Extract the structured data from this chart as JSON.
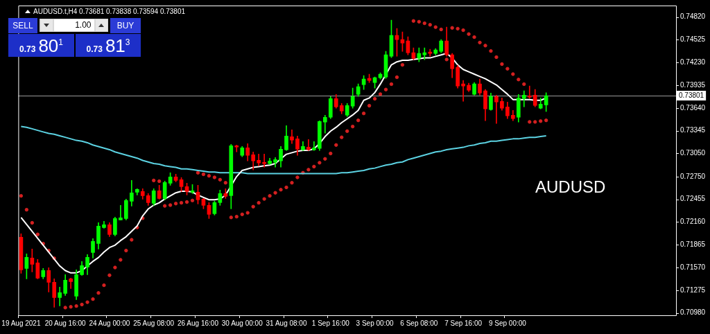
{
  "chart_data": {
    "type": "candlestick",
    "title": "AUDUSD.t,H4 0.73681 0.73838 0.73594 0.73801",
    "annotations": [
      "SELL",
      "1.00",
      "BUY",
      "0.73",
      "80$^{1}$",
      "0.73",
      "81$^{3}$",
      "AUDUSD"
    ],
    "categories": [
      "19 Aug 2021",
      null,
      null,
      null,
      null,
      null,
      null,
      null,
      "20 Aug 16:00",
      null,
      null,
      null,
      null,
      null,
      null,
      null,
      "24 Aug 00:00",
      null,
      null,
      null,
      null,
      null,
      null,
      null,
      "25 Aug 08:00",
      null,
      null,
      null,
      null,
      null,
      null,
      null,
      "26 Aug 16:00",
      null,
      null,
      null,
      null,
      null,
      null,
      null,
      "30 Aug 00:00",
      null,
      null,
      null,
      null,
      null,
      null,
      null,
      "31 Aug 08:00",
      null,
      null,
      null,
      null,
      null,
      null,
      null,
      "1 Sep 16:00",
      null,
      null,
      null,
      null,
      null,
      null,
      null,
      "3 Sep 00:00",
      null,
      null,
      null,
      null,
      null,
      null,
      null,
      "6 Sep 08:00",
      null,
      null,
      null,
      null,
      null,
      null,
      null,
      "7 Sep 16:00",
      null,
      null,
      null,
      null,
      null,
      null,
      null,
      "9 Sep 00:00",
      null,
      null,
      null,
      null,
      null,
      null,
      null,
      null,
      null,
      null,
      null,
      null,
      null,
      null,
      null,
      null,
      null,
      null,
      null,
      null,
      null,
      null,
      null,
      null,
      null,
      null,
      null,
      null,
      null,
      null
    ],
    "ohlc": [
      [
        0.71963,
        0.72008,
        0.71495,
        0.7154
      ],
      [
        0.71558,
        0.71747,
        0.71423,
        0.71702
      ],
      [
        0.71693,
        0.7181,
        0.71513,
        0.71612
      ],
      [
        0.7163,
        0.71675,
        0.71423,
        0.71432
      ],
      [
        0.7145,
        0.71558,
        0.71423,
        0.71531
      ],
      [
        0.71531,
        0.71567,
        0.71252,
        0.71378
      ],
      [
        0.71378,
        0.71423,
        0.71054,
        0.7118
      ],
      [
        0.7118,
        0.71315,
        0.71072,
        0.71243
      ],
      [
        0.71234,
        0.71477,
        0.71207,
        0.71405
      ],
      [
        0.71423,
        0.71432,
        0.71297,
        0.71387
      ],
      [
        0.71198,
        0.7154,
        0.71153,
        0.71477
      ],
      [
        0.71477,
        0.71648,
        0.71468,
        0.71594
      ],
      [
        0.71576,
        0.71738,
        0.71477,
        0.71702
      ],
      [
        0.71765,
        0.71945,
        0.71693,
        0.71909
      ],
      [
        0.71882,
        0.72152,
        0.7181,
        0.72107
      ],
      [
        0.72089,
        0.7217,
        0.7208,
        0.72125
      ],
      [
        0.72125,
        0.72152,
        0.71972,
        0.71999
      ],
      [
        0.71999,
        0.72224,
        0.71981,
        0.72206
      ],
      [
        0.72188,
        0.72377,
        0.72188,
        0.72215
      ],
      [
        0.72206,
        0.72458,
        0.72188,
        0.7244
      ],
      [
        0.72431,
        0.72701,
        0.72368,
        0.72539
      ],
      [
        0.72548,
        0.72593,
        0.72512,
        0.72584
      ],
      [
        0.72557,
        0.72593,
        0.72458,
        0.72503
      ],
      [
        0.72503,
        0.7253,
        0.72377,
        0.72413
      ],
      [
        0.72404,
        0.72593,
        0.72377,
        0.72566
      ],
      [
        0.72566,
        0.72638,
        0.72458,
        0.72467
      ],
      [
        0.72467,
        0.72692,
        0.72449,
        0.72674
      ],
      [
        0.72665,
        0.728,
        0.72638,
        0.72746
      ],
      [
        0.72746,
        0.72782,
        0.72683,
        0.72701
      ],
      [
        0.7271,
        0.72737,
        0.72557,
        0.7262
      ],
      [
        0.7262,
        0.72665,
        0.72512,
        0.72557
      ],
      [
        0.72548,
        0.72647,
        0.7253,
        0.72566
      ],
      [
        0.72548,
        0.72638,
        0.72395,
        0.72449
      ],
      [
        0.72458,
        0.72467,
        0.72332,
        0.72377
      ],
      [
        0.72377,
        0.72413,
        0.72206,
        0.7226
      ],
      [
        0.72269,
        0.72431,
        0.72251,
        0.72413
      ],
      [
        0.72413,
        0.72575,
        0.72377,
        0.7253
      ],
      [
        0.7253,
        0.72593,
        0.72467,
        0.72494
      ],
      [
        0.72503,
        0.73169,
        0.72332,
        0.73151
      ],
      [
        0.73151,
        0.7316,
        0.7307,
        0.73133
      ],
      [
        0.73025,
        0.73142,
        0.73007,
        0.73124
      ],
      [
        0.73124,
        0.73178,
        0.72953,
        0.73025
      ],
      [
        0.73034,
        0.7307,
        0.72836,
        0.72953
      ],
      [
        0.72962,
        0.73043,
        0.7289,
        0.72926
      ],
      [
        0.72935,
        0.73043,
        0.72872,
        0.72917
      ],
      [
        0.72917,
        0.72989,
        0.72908,
        0.72953
      ],
      [
        0.72935,
        0.72998,
        0.72872,
        0.72971
      ],
      [
        0.72953,
        0.73142,
        0.72872,
        0.73106
      ],
      [
        0.73097,
        0.73412,
        0.73088,
        0.73277
      ],
      [
        0.73268,
        0.73358,
        0.73178,
        0.73223
      ],
      [
        0.73241,
        0.73277,
        0.73025,
        0.73106
      ],
      [
        0.73097,
        0.73205,
        0.73088,
        0.73142
      ],
      [
        0.73133,
        0.73232,
        0.73088,
        0.73097
      ],
      [
        0.73097,
        0.73205,
        0.73088,
        0.73124
      ],
      [
        0.73115,
        0.73475,
        0.73088,
        0.73466
      ],
      [
        0.73457,
        0.73547,
        0.73313,
        0.7352
      ],
      [
        0.7352,
        0.7379,
        0.73502,
        0.73763
      ],
      [
        0.73763,
        0.73817,
        0.73637,
        0.73655
      ],
      [
        0.73673,
        0.737,
        0.73565,
        0.73601
      ],
      [
        0.73547,
        0.737,
        0.73529,
        0.73673
      ],
      [
        0.73664,
        0.73898,
        0.73637,
        0.7379
      ],
      [
        0.73817,
        0.73952,
        0.7379,
        0.73916
      ],
      [
        0.73943,
        0.7406,
        0.7388,
        0.74015
      ],
      [
        0.74024,
        0.74078,
        0.7397,
        0.73997
      ],
      [
        0.7397,
        0.74042,
        0.73898,
        0.74033
      ],
      [
        0.74033,
        0.74096,
        0.74015,
        0.74078
      ],
      [
        0.74042,
        0.74375,
        0.74024,
        0.7433
      ],
      [
        0.74312,
        0.7478,
        0.74294,
        0.74582
      ],
      [
        0.74582,
        0.74672,
        0.74312,
        0.74528
      ],
      [
        0.74528,
        0.74627,
        0.74375,
        0.74483
      ],
      [
        0.7451,
        0.74564,
        0.7433,
        0.74357
      ],
      [
        0.74357,
        0.7442,
        0.74267,
        0.74285
      ],
      [
        0.74285,
        0.7442,
        0.7424,
        0.74348
      ],
      [
        0.7433,
        0.7442,
        0.74267,
        0.74357
      ],
      [
        0.74366,
        0.74402,
        0.74312,
        0.74348
      ],
      [
        0.74348,
        0.74411,
        0.7433,
        0.74393
      ],
      [
        0.74375,
        0.74528,
        0.74357,
        0.7451
      ],
      [
        0.7451,
        0.7469,
        0.74312,
        0.7433
      ],
      [
        0.7433,
        0.74348,
        0.74033,
        0.7415
      ],
      [
        0.74168,
        0.74195,
        0.73898,
        0.73925
      ],
      [
        0.73952,
        0.73997,
        0.73727,
        0.73925
      ],
      [
        0.73934,
        0.73961,
        0.73853,
        0.73871
      ],
      [
        0.73817,
        0.7397,
        0.73808,
        0.73952
      ],
      [
        0.73952,
        0.74015,
        0.73808,
        0.73835
      ],
      [
        0.73862,
        0.7388,
        0.73475,
        0.73628
      ],
      [
        0.73619,
        0.73835,
        0.7361,
        0.7379
      ],
      [
        0.7379,
        0.73808,
        0.73439,
        0.73718
      ],
      [
        0.73727,
        0.73772,
        0.7361,
        0.73637
      ],
      [
        0.73655,
        0.73718,
        0.73502,
        0.73538
      ],
      [
        0.73547,
        0.7361,
        0.73475,
        0.73502
      ],
      [
        0.7352,
        0.73817,
        0.73457,
        0.73772
      ],
      [
        0.73763,
        0.73862,
        0.73655,
        0.73808
      ],
      [
        0.73799,
        0.73925,
        0.73763,
        0.73781
      ],
      [
        0.73808,
        0.7388,
        0.73655,
        0.73673
      ],
      [
        0.73637,
        0.73772,
        0.73628,
        0.73691
      ],
      [
        0.73681,
        0.73838,
        0.73594,
        0.73801
      ],
      null,
      null,
      null,
      null,
      null,
      null,
      null,
      null,
      null,
      null,
      null,
      null,
      null,
      null,
      null,
      null,
      null,
      null,
      null,
      null,
      null,
      null,
      null
    ],
    "colors": [
      "#ff0000",
      "#00ff00",
      "#ff0000",
      "#ff0000",
      "#00ff00",
      "#ff0000",
      "#ff0000",
      "#00ff00",
      "#00ff00",
      "#ff0000",
      "#00ff00",
      "#00ff00",
      "#00ff00",
      "#00ff00",
      "#00ff00",
      "#00ff00",
      "#ff0000",
      "#00ff00",
      "#00ff00",
      "#00ff00",
      "#00ff00",
      "#00ff00",
      "#ff0000",
      "#ff0000",
      "#00ff00",
      "#ff0000",
      "#00ff00",
      "#00ff00",
      "#ff0000",
      "#ff0000",
      "#ff0000",
      "#00ff00",
      "#ff0000",
      "#ff0000",
      "#ff0000",
      "#00ff00",
      "#00ff00",
      "#ff0000",
      "#00ff00",
      "#ff0000",
      "#00ff00",
      "#ff0000",
      "#ff0000",
      "#ff0000",
      "#ff0000",
      "#00ff00",
      "#00ff00",
      "#00ff00",
      "#00ff00",
      "#ff0000",
      "#ff0000",
      "#00ff00",
      "#ff0000",
      "#00ff00",
      "#00ff00",
      "#00ff00",
      "#00ff00",
      "#ff0000",
      "#ff0000",
      "#00ff00",
      "#00ff00",
      "#00ff00",
      "#00ff00",
      "#ff0000",
      "#00ff00",
      "#00ff00",
      "#00ff00",
      "#00ff00",
      "#ff0000",
      "#ff0000",
      "#ff0000",
      "#ff0000",
      "#00ff00",
      "#00ff00",
      "#ff0000",
      "#00ff00",
      "#00ff00",
      "#ff0000",
      "#ff0000",
      "#ff0000",
      "#ff0000",
      "#ff0000",
      "#00ff00",
      "#ff0000",
      "#ff0000",
      "#00ff00",
      "#ff0000",
      "#ff0000",
      "#ff0000",
      "#ff0000",
      "#00ff00",
      "#00ff00",
      "#ff0000",
      "#ff0000",
      "#00ff00",
      "#00ff00",
      null,
      null,
      null,
      null,
      null,
      null,
      null,
      null,
      null,
      null,
      null,
      null,
      null,
      null,
      null,
      null,
      null,
      null,
      null,
      null,
      null,
      null,
      null
    ],
    "series": [
      {
        "type": "line",
        "color": "#ffffff",
        "values": [
          0.7222,
          0.7213,
          0.7204,
          0.7195,
          0.7186,
          0.7177,
          0.7168,
          0.7159,
          0.7153,
          0.715,
          0.715,
          0.7153,
          0.7159,
          0.7165,
          0.717,
          0.7177,
          0.7183,
          0.7186,
          0.7192,
          0.7197,
          0.7204,
          0.7211,
          0.7224,
          0.7233,
          0.7238,
          0.7241,
          0.7246,
          0.725,
          0.7254,
          0.7256,
          0.7256,
          0.7255,
          0.7251,
          0.7248,
          0.7245,
          0.7245,
          0.7246,
          0.7251,
          null,
          0.7275,
          0.7283,
          0.7285,
          0.7287,
          0.7288,
          0.7289,
          0.729,
          0.7292,
          0.7298,
          0.7304,
          0.7306,
          0.7308,
          0.7309,
          0.7309,
          0.7311,
          0.7318,
          0.7327,
          0.7334,
          0.7339,
          0.7345,
          0.735,
          0.7355,
          0.7361,
          0.7374,
          0.7377,
          0.7384,
          0.7395,
          null,
          0.742,
          0.7424,
          0.7426,
          0.7426,
          0.7427,
          0.7428,
          0.7429,
          0.7429,
          0.7431,
          0.7433,
          0.7435,
          0.7429,
          0.742,
          0.7414,
          0.7411,
          0.7408,
          0.7405,
          0.7402,
          0.7398,
          0.7394,
          0.7388,
          0.7382,
          0.7375,
          0.7375,
          0.7375,
          0.7375,
          0.7374,
          0.7374,
          0.7377,
          null,
          null,
          null,
          null,
          null,
          null,
          null,
          null,
          null,
          null,
          null,
          null,
          null,
          null,
          null,
          null,
          null,
          null,
          null,
          null,
          null,
          null,
          null
        ]
      },
      {
        "type": "line",
        "color": "#5cd3e3",
        "values": [
          0.734,
          0.7339,
          0.7337,
          0.7335,
          0.7333,
          0.7331,
          0.733,
          0.7328,
          0.7326,
          0.7324,
          0.7322,
          0.7321,
          0.7319,
          0.7316,
          0.7314,
          0.7312,
          0.731,
          0.7307,
          0.7305,
          0.7303,
          0.7301,
          0.7299,
          0.7296,
          0.7294,
          0.7292,
          0.7291,
          0.7289,
          0.7288,
          0.7287,
          0.7285,
          0.7285,
          0.7284,
          0.7283,
          0.7282,
          0.7281,
          0.7281,
          0.728,
          0.728,
          0.728,
          0.728,
          0.728,
          0.7279,
          0.7279,
          0.7279,
          0.7279,
          0.7279,
          0.7279,
          0.7279,
          0.7279,
          0.7279,
          0.7279,
          0.7279,
          0.7279,
          0.7279,
          0.7279,
          0.7279,
          0.7279,
          0.7279,
          0.728,
          0.728,
          0.7281,
          0.7282,
          0.7283,
          0.7285,
          0.7286,
          0.7288,
          0.729,
          0.7291,
          0.7293,
          0.7294,
          0.7297,
          0.7299,
          0.7301,
          0.7303,
          0.7305,
          0.7307,
          0.7308,
          0.731,
          0.7311,
          0.7312,
          0.7313,
          0.7315,
          0.7316,
          0.7318,
          0.7319,
          0.7321,
          0.7321,
          0.7322,
          0.7323,
          0.7324,
          0.7324,
          0.7325,
          0.7326,
          0.7326,
          0.7327,
          0.7328,
          null,
          null,
          null,
          null,
          null,
          null,
          null,
          null,
          null,
          null,
          null,
          null,
          null,
          null,
          null,
          null,
          null,
          null,
          null,
          null,
          null,
          null,
          null
        ]
      },
      {
        "type": "scatter",
        "color": "#d42020",
        "marker": "circle",
        "values": [
          0.725,
          0.7232,
          0.7215,
          0.72,
          0.7188,
          0.7179,
          0.7169,
          null,
          0.7105,
          0.7106,
          0.7107,
          0.7109,
          0.7112,
          0.7116,
          0.7124,
          0.7134,
          0.7147,
          0.7157,
          0.7167,
          0.7179,
          0.7193,
          0.7209,
          0.7221,
          null,
          0.727,
          0.7269,
          0.7237,
          0.7238,
          0.724,
          0.7241,
          0.7242,
          0.7244,
          0.728,
          0.7278,
          0.7276,
          0.7274,
          0.7271,
          0.7267,
          0.7222,
          0.7223,
          0.7226,
          0.7228,
          0.7236,
          0.7241,
          0.7246,
          0.725,
          0.7254,
          0.7258,
          0.7261,
          0.7267,
          0.7274,
          0.728,
          0.7284,
          0.7288,
          0.7293,
          0.7298,
          0.7305,
          0.7316,
          0.7326,
          0.7334,
          0.734,
          0.7348,
          0.7357,
          0.7367,
          0.7376,
          0.7382,
          0.7388,
          0.7395,
          0.7404,
          0.742,
          null,
          0.7477,
          0.7476,
          0.7474,
          0.7472,
          0.7469,
          0.7466,
          0.7427,
          0.7468,
          0.7467,
          0.7465,
          0.746,
          0.7456,
          0.7449,
          0.7445,
          0.7438,
          0.743,
          0.7421,
          0.7415,
          0.7408,
          0.7401,
          0.7395,
          0.7346,
          0.7346,
          0.7347,
          0.7348,
          null,
          null,
          null,
          null,
          null,
          null,
          null,
          null,
          null,
          null,
          null,
          null,
          null,
          null,
          null,
          null,
          null,
          null,
          null,
          null,
          null,
          null,
          null
        ]
      }
    ],
    "ylim": [
      0.7095,
      0.7497
    ],
    "yticks": [
      {
        "value": 0.7482,
        "label": "0.74820"
      },
      0.74525,
      {
        "value": 0.7423,
        "label": "0.74230"
      },
      0.73935,
      {
        "value": 0.7364,
        "label": "0.73640"
      },
      0.73345,
      {
        "value": 0.7305,
        "label": "0.73050"
      },
      {
        "value": 0.7275,
        "label": "0.72750"
      },
      0.72455,
      {
        "value": 0.7216,
        "label": "0.72160"
      },
      0.71865,
      {
        "value": 0.7157,
        "label": "0.71570"
      },
      0.71275,
      {
        "value": 0.7098,
        "label": "0.70980"
      }
    ],
    "ref_lines": [
      {
        "axis": "y",
        "value": 0.73801,
        "label": "0.73801",
        "color": "#9a9a9a"
      }
    ]
  }
}
